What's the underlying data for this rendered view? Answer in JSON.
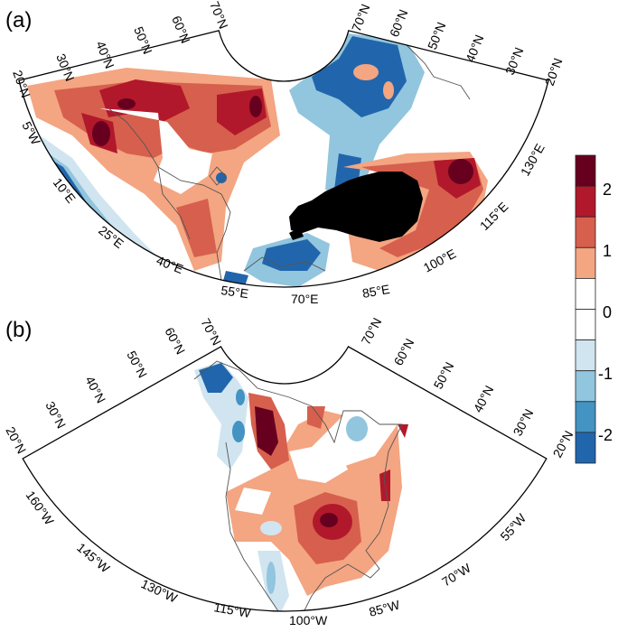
{
  "panels": [
    {
      "label": "(a)",
      "lat_labels_left": [
        "20°N",
        "30°N",
        "40°N",
        "50°N",
        "60°N",
        "70°N"
      ],
      "lat_labels_right": [
        "70°N",
        "60°N",
        "50°N",
        "40°N",
        "30°N",
        "20°N"
      ],
      "lon_labels": [
        "5°W",
        "10°E",
        "25°E",
        "40°E",
        "55°E",
        "70°E",
        "85°E",
        "100°E",
        "115°E",
        "130°E"
      ],
      "masked_region_color": "#000000"
    },
    {
      "label": "(b)",
      "lat_labels_left": [
        "20°N",
        "30°N",
        "40°N",
        "50°N",
        "60°N",
        "70°N"
      ],
      "lat_labels_right": [
        "70°N",
        "60°N",
        "50°N",
        "40°N",
        "30°N",
        "20°N"
      ],
      "lon_labels": [
        "160°W",
        "145°W",
        "130°W",
        "115°W",
        "100°W",
        "85°W",
        "70°W",
        "55°W"
      ]
    }
  ],
  "colorbar": {
    "colors": [
      "#67001f",
      "#b2182b",
      "#d6604d",
      "#f4a582",
      "#ffffff",
      "#ffffff",
      "#d1e5f0",
      "#92c5de",
      "#4393c3",
      "#2166ac"
    ],
    "tick_labels": [
      "2",
      "1",
      "0",
      "-1",
      "-2"
    ],
    "range": [
      -2.5,
      2.5
    ]
  }
}
